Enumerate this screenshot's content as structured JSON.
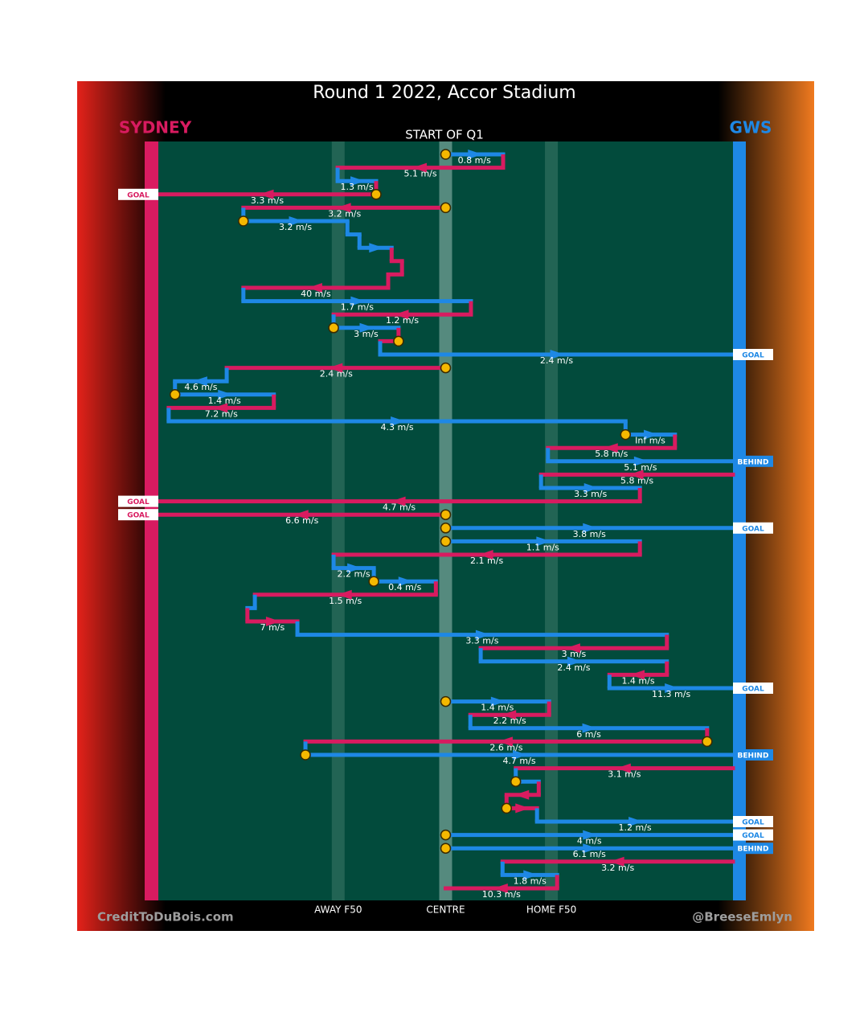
{
  "chart_data": {
    "type": "chain",
    "title": "Round 1 2022, Accor Stadium",
    "subtitle": "START OF Q1",
    "teams": [
      {
        "name": "SYDNEY",
        "color": "#d81b60"
      },
      {
        "name": "GWS",
        "color": "#1e88e5"
      }
    ],
    "xlim": [
      0,
      100
    ],
    "xticks": [
      {
        "value": 31.3,
        "label": "AWAY F50"
      },
      {
        "value": 50,
        "label": "CENTRE"
      },
      {
        "value": 68.4,
        "label": "HOME F50"
      }
    ],
    "credit_left": "CreditToDuBois.com",
    "credit_right": "@BreeseEmlyn",
    "legs": [
      {
        "team": 1,
        "from": 50,
        "to": 60,
        "label": "0.8 m/s",
        "start": true
      },
      {
        "team": 0,
        "from": 60,
        "to": 31.2,
        "label": "5.1 m/s"
      },
      {
        "team": 1,
        "from": 31.2,
        "to": 37.9,
        "label": "1.3 m/s"
      },
      {
        "team": 0,
        "from": 37.9,
        "to": 0,
        "label": "3.3 m/s",
        "start": true,
        "result": "GOAL"
      },
      {
        "team": 0,
        "from": 50,
        "to": 14.8,
        "label": "3.2 m/s",
        "start": true
      },
      {
        "team": 1,
        "from": 14.8,
        "to": 32.9,
        "label": "3.2 m/s",
        "start": true
      },
      {
        "team": 1,
        "from": 32.9,
        "to": 35,
        "label": null
      },
      {
        "team": 1,
        "from": 35,
        "to": 40.6,
        "label": null
      },
      {
        "team": 0,
        "from": 40.6,
        "to": 42.4,
        "label": null
      },
      {
        "team": 0,
        "from": 42.4,
        "to": 40,
        "label": null
      },
      {
        "team": 0,
        "from": 40,
        "to": 14.8,
        "label": "40 m/s"
      },
      {
        "team": 1,
        "from": 14.8,
        "to": 54.4,
        "label": "1.7 m/s"
      },
      {
        "team": 0,
        "from": 54.4,
        "to": 30.5,
        "label": "1.2 m/s"
      },
      {
        "team": 1,
        "from": 30.5,
        "to": 41.8,
        "label": "3 m/s",
        "start": true
      },
      {
        "team": 0,
        "from": 41.8,
        "to": 38.6,
        "label": null,
        "start": true
      },
      {
        "team": 1,
        "from": 38.6,
        "to": 100,
        "label": "2.4 m/s",
        "result": "GOAL"
      },
      {
        "team": 0,
        "from": 50,
        "to": 11.9,
        "label": "2.4 m/s",
        "start": true
      },
      {
        "team": 1,
        "from": 11.9,
        "to": 2.9,
        "label": "4.6 m/s"
      },
      {
        "team": 1,
        "from": 2.9,
        "to": 20.1,
        "label": "1.4 m/s",
        "start": true
      },
      {
        "team": 0,
        "from": 20.1,
        "to": 1.8,
        "label": "7.2 m/s"
      },
      {
        "team": 1,
        "from": 1.8,
        "to": 81.3,
        "label": "4.3 m/s"
      },
      {
        "team": 1,
        "from": 81.3,
        "to": 89.9,
        "label": "Inf m/s",
        "start": true
      },
      {
        "team": 0,
        "from": 89.9,
        "to": 67.8,
        "label": "5.8 m/s"
      },
      {
        "team": 1,
        "from": 67.8,
        "to": 100,
        "label": "5.1 m/s",
        "result": "BEHIND"
      },
      {
        "team": 0,
        "from": 100,
        "to": 66.6,
        "label": "5.8 m/s"
      },
      {
        "team": 1,
        "from": 66.6,
        "to": 83.8,
        "label": "3.3 m/s"
      },
      {
        "team": 0,
        "from": 83.8,
        "to": 0,
        "label": "4.7 m/s",
        "result": "GOAL"
      },
      {
        "team": 0,
        "from": 50,
        "to": 0,
        "label": "6.6 m/s",
        "start": true,
        "result": "GOAL"
      },
      {
        "team": 1,
        "from": 50,
        "to": 100,
        "label": "3.8 m/s",
        "start": true,
        "result": "GOAL"
      },
      {
        "team": 1,
        "from": 50,
        "to": 83.8,
        "label": "1.1 m/s",
        "start": true
      },
      {
        "team": 0,
        "from": 83.8,
        "to": 30.5,
        "label": "2.1 m/s"
      },
      {
        "team": 1,
        "from": 30.5,
        "to": 37.5,
        "label": "2.2 m/s"
      },
      {
        "team": 1,
        "from": 37.5,
        "to": 48.3,
        "label": "0.4 m/s",
        "start": true
      },
      {
        "team": 0,
        "from": 48.3,
        "to": 16.8,
        "label": "1.5 m/s"
      },
      {
        "team": 1,
        "from": 16.8,
        "to": 15.5,
        "label": null
      },
      {
        "team": 0,
        "from": 15.5,
        "to": 24.2,
        "label": "7 m/s"
      },
      {
        "team": 1,
        "from": 24.2,
        "to": 88.5,
        "label": "3.3 m/s"
      },
      {
        "team": 0,
        "from": 88.5,
        "to": 56.1,
        "label": "3 m/s"
      },
      {
        "team": 1,
        "from": 56.1,
        "to": 88.5,
        "label": "2.4 m/s"
      },
      {
        "team": 0,
        "from": 88.5,
        "to": 78.5,
        "label": "1.4 m/s"
      },
      {
        "team": 1,
        "from": 78.5,
        "to": 100,
        "label": "11.3 m/s",
        "result": "GOAL"
      },
      {
        "team": 1,
        "from": 50,
        "to": 68,
        "label": "1.4 m/s",
        "start": true
      },
      {
        "team": 0,
        "from": 68,
        "to": 54.3,
        "label": "2.2 m/s"
      },
      {
        "team": 1,
        "from": 54.3,
        "to": 95.5,
        "label": "6 m/s"
      },
      {
        "team": 0,
        "from": 95.5,
        "to": 25.6,
        "label": "2.6 m/s",
        "start": true
      },
      {
        "team": 1,
        "from": 25.6,
        "to": 100,
        "label": "4.7 m/s",
        "start": true,
        "result": "BEHIND"
      },
      {
        "team": 0,
        "from": 100,
        "to": 62.2,
        "label": "3.1 m/s"
      },
      {
        "team": 1,
        "from": 62.2,
        "to": 66.2,
        "label": null,
        "start": true
      },
      {
        "team": 0,
        "from": 66.2,
        "to": 60.6,
        "label": null
      },
      {
        "team": 0,
        "from": 60.6,
        "to": 65.9,
        "label": null,
        "start": true
      },
      {
        "team": 1,
        "from": 65.9,
        "to": 100,
        "label": "1.2 m/s",
        "result": "GOAL"
      },
      {
        "team": 1,
        "from": 50,
        "to": 100,
        "label": "4 m/s",
        "start": true,
        "result": "GOAL"
      },
      {
        "team": 1,
        "from": 50,
        "to": 100,
        "label": "6.1 m/s",
        "start": true,
        "result": "BEHIND"
      },
      {
        "team": 0,
        "from": 100,
        "to": 59.9,
        "label": "3.2 m/s"
      },
      {
        "team": 1,
        "from": 59.9,
        "to": 69.4,
        "label": "1.8 m/s"
      },
      {
        "team": 0,
        "from": 69.4,
        "to": 50,
        "label": "10.3 m/s"
      }
    ]
  }
}
